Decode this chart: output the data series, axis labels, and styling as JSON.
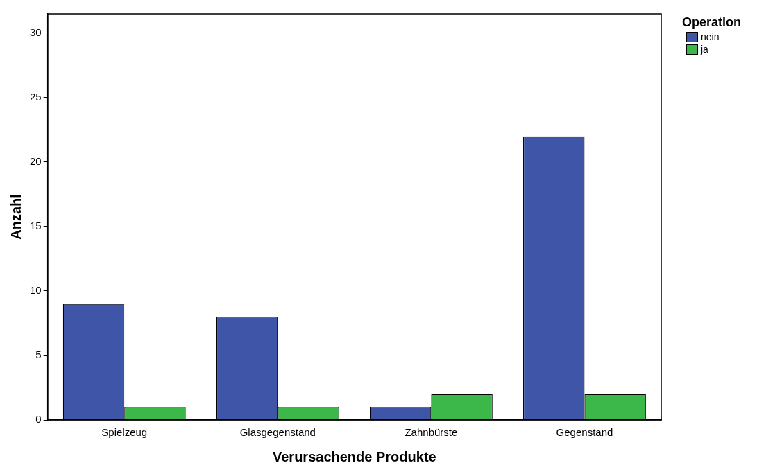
{
  "chart_data": {
    "type": "bar",
    "xlabel": "Verursachende Produkte",
    "ylabel": "Anzahl",
    "legend_title": "Operation",
    "categories": [
      "Spielzeug",
      "Glasgegenstand",
      "Zahnbürste",
      "Gegenstand"
    ],
    "series": [
      {
        "name": "nein",
        "color": "#3e55a8",
        "values": [
          9,
          8,
          1,
          22
        ]
      },
      {
        "name": "ja",
        "color": "#3cb84a",
        "values": [
          1,
          1,
          2,
          2
        ]
      }
    ],
    "ylim": [
      0,
      31.5
    ],
    "yticks": [
      0,
      5,
      10,
      15,
      20,
      25,
      30
    ],
    "grid": false,
    "legend": "top right"
  }
}
